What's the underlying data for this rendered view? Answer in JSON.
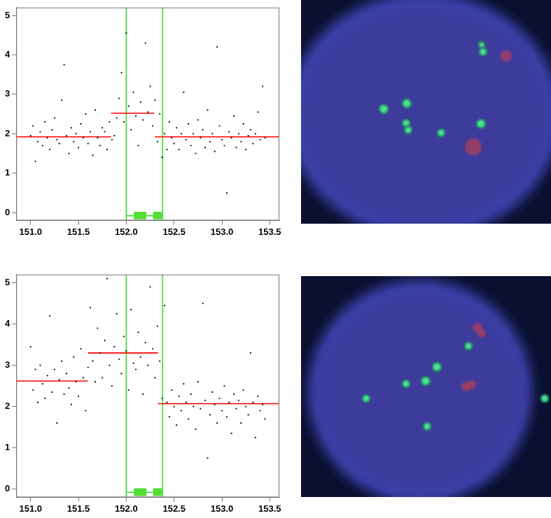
{
  "chart_data": [
    {
      "type": "scatter",
      "xlim": [
        150.85,
        153.6
      ],
      "xticks": [
        {
          "value": 151,
          "label": "151.0"
        },
        {
          "value": 151.5,
          "label": "151.5"
        },
        {
          "value": 152,
          "label": "152.0"
        },
        {
          "value": 152.5,
          "label": "152.5"
        },
        {
          "value": 153,
          "label": "153.0"
        },
        {
          "value": 153.5,
          "label": "153.5"
        }
      ],
      "ylim": [
        -0.2,
        5.2
      ],
      "yticks": [
        0,
        1,
        2,
        3,
        4,
        5
      ],
      "grid": false,
      "series": [
        {
          "type": "scatter",
          "color": "#000000",
          "marker": "dot",
          "x": [
            151.0,
            151.025,
            151.05,
            151.075,
            151.1,
            151.125,
            151.15,
            151.175,
            151.2,
            151.225,
            151.25,
            151.275,
            151.3,
            151.325,
            151.35,
            151.375,
            151.4,
            151.425,
            151.45,
            151.475,
            151.5,
            151.525,
            151.55,
            151.575,
            151.6,
            151.625,
            151.65,
            151.675,
            151.7,
            151.725,
            151.75,
            151.775,
            151.8,
            151.825,
            151.85,
            151.875,
            151.9,
            151.925,
            151.95,
            151.975,
            152.0,
            152.025,
            152.05,
            152.075,
            152.1,
            152.125,
            152.15,
            152.175,
            152.2,
            152.225,
            152.25,
            152.275,
            152.3,
            152.325,
            152.35,
            152.375,
            152.4,
            152.425,
            152.45,
            152.475,
            152.5,
            152.525,
            152.55,
            152.575,
            152.6,
            152.625,
            152.65,
            152.675,
            152.7,
            152.725,
            152.75,
            152.775,
            152.8,
            152.825,
            152.85,
            152.875,
            152.9,
            152.925,
            152.95,
            152.975,
            153.0,
            153.025,
            153.05,
            153.075,
            153.1,
            153.125,
            153.15,
            153.175,
            153.2,
            153.225,
            153.25,
            153.275,
            153.3,
            153.325,
            153.35,
            153.375,
            153.4,
            153.425,
            153.45
          ],
          "values": [
            1.95,
            2.2,
            1.3,
            1.8,
            2.05,
            1.7,
            2.3,
            1.9,
            1.6,
            2.1,
            2.4,
            1.85,
            1.75,
            2.85,
            3.75,
            1.95,
            1.5,
            2.15,
            1.8,
            2.0,
            1.65,
            2.25,
            1.9,
            2.5,
            1.75,
            2.05,
            1.45,
            2.6,
            1.9,
            1.7,
            2.15,
            2.05,
            1.6,
            2.3,
            1.85,
            1.95,
            2.4,
            2.9,
            3.55,
            2.3,
            4.55,
            2.7,
            2.1,
            3.05,
            2.45,
            1.7,
            2.8,
            2.35,
            4.3,
            2.55,
            3.2,
            2.2,
            2.85,
            1.8,
            2.5,
            1.4,
            2.0,
            1.6,
            2.3,
            1.9,
            1.75,
            2.15,
            1.6,
            2.0,
            3.05,
            1.85,
            2.25,
            1.7,
            2.0,
            1.5,
            2.35,
            1.9,
            2.1,
            1.65,
            2.6,
            1.8,
            2.0,
            1.55,
            4.2,
            2.2,
            1.85,
            1.7,
            0.5,
            2.05,
            1.9,
            2.45,
            1.65,
            2.0,
            1.8,
            2.25,
            1.6,
            1.95,
            2.1,
            1.75,
            2.0,
            2.55,
            1.85,
            3.2,
            1.9
          ]
        },
        {
          "type": "line",
          "color": "#ff0000",
          "x": [
            150.85,
            151.84
          ],
          "values": [
            1.92,
            1.92
          ]
        },
        {
          "type": "line",
          "color": "#ff0000",
          "x": [
            151.84,
            152.29
          ],
          "values": [
            2.52,
            2.52
          ]
        },
        {
          "type": "line",
          "color": "#ff0000",
          "x": [
            152.3,
            153.6
          ],
          "values": [
            1.92,
            1.92
          ]
        },
        {
          "type": "line",
          "color": "#33dd33",
          "x": [
            152.0,
            152.0
          ],
          "values": [
            -0.2,
            5.2
          ]
        },
        {
          "type": "line",
          "color": "#33dd33",
          "x": [
            152.38,
            152.38
          ],
          "values": [
            -0.2,
            5.2
          ]
        },
        {
          "type": "line",
          "color": "#33dd33",
          "x": [
            152.0,
            152.38
          ],
          "values": [
            -0.08,
            -0.08
          ]
        }
      ],
      "features": [
        {
          "color": "#55dd33",
          "x": [
            152.08,
            152.21
          ],
          "y": [
            -0.17,
            0.02
          ]
        },
        {
          "color": "#55dd33",
          "x": [
            152.28,
            152.37
          ],
          "y": [
            -0.17,
            0.02
          ]
        }
      ]
    },
    {
      "type": "scatter",
      "xlim": [
        150.85,
        153.6
      ],
      "xticks": [
        {
          "value": 151,
          "label": "151.0"
        },
        {
          "value": 151.5,
          "label": "151.5"
        },
        {
          "value": 152,
          "label": "152.0"
        },
        {
          "value": 152.5,
          "label": "152.5"
        },
        {
          "value": 153,
          "label": "153.0"
        },
        {
          "value": 153.5,
          "label": "153.5"
        }
      ],
      "ylim": [
        -0.2,
        5.2
      ],
      "yticks": [
        0,
        1,
        2,
        3,
        4,
        5
      ],
      "grid": false,
      "series": [
        {
          "type": "scatter",
          "color": "#000000",
          "marker": "dot",
          "x": [
            151.0,
            151.025,
            151.05,
            151.075,
            151.1,
            151.125,
            151.15,
            151.175,
            151.2,
            151.225,
            151.25,
            151.275,
            151.3,
            151.325,
            151.35,
            151.375,
            151.4,
            151.425,
            151.45,
            151.475,
            151.5,
            151.525,
            151.55,
            151.575,
            151.6,
            151.625,
            151.65,
            151.675,
            151.7,
            151.725,
            151.75,
            151.775,
            151.8,
            151.825,
            151.85,
            151.875,
            151.9,
            151.925,
            151.95,
            151.975,
            152.0,
            152.025,
            152.05,
            152.075,
            152.1,
            152.125,
            152.15,
            152.175,
            152.2,
            152.225,
            152.25,
            152.275,
            152.3,
            152.325,
            152.35,
            152.375,
            152.4,
            152.425,
            152.45,
            152.475,
            152.5,
            152.525,
            152.55,
            152.575,
            152.6,
            152.625,
            152.65,
            152.675,
            152.7,
            152.725,
            152.75,
            152.775,
            152.8,
            152.825,
            152.85,
            152.875,
            152.9,
            152.925,
            152.95,
            152.975,
            153.0,
            153.025,
            153.05,
            153.075,
            153.1,
            153.125,
            153.15,
            153.175,
            153.2,
            153.225,
            153.25,
            153.275,
            153.3,
            153.325,
            153.35,
            153.375,
            153.4,
            153.425,
            153.45
          ],
          "values": [
            3.45,
            2.4,
            2.9,
            2.1,
            3.0,
            2.55,
            2.2,
            2.75,
            4.2,
            2.35,
            2.9,
            1.6,
            2.65,
            3.1,
            2.3,
            2.8,
            2.45,
            2.05,
            3.2,
            2.6,
            2.25,
            3.4,
            2.7,
            1.9,
            2.95,
            4.4,
            3.1,
            2.6,
            3.9,
            3.3,
            2.7,
            3.6,
            5.1,
            3.0,
            2.5,
            3.45,
            4.25,
            3.15,
            2.8,
            3.7,
            3.35,
            2.4,
            4.35,
            3.05,
            2.9,
            3.8,
            3.2,
            2.3,
            3.55,
            3.0,
            4.9,
            3.4,
            2.7,
            3.95,
            3.1,
            2.2,
            4.45,
            2.1,
            1.75,
            2.4,
            2.0,
            1.55,
            2.25,
            1.9,
            2.55,
            2.1,
            1.7,
            2.3,
            2.0,
            1.45,
            2.6,
            1.95,
            4.5,
            2.15,
            0.75,
            1.8,
            2.35,
            2.05,
            1.6,
            2.2,
            1.9,
            2.5,
            1.75,
            2.1,
            1.35,
            2.3,
            1.95,
            2.15,
            1.6,
            2.4,
            2.0,
            1.8,
            3.3,
            2.1,
            1.25,
            2.25,
            1.9,
            2.05,
            1.7
          ]
        },
        {
          "type": "line",
          "color": "#ff0000",
          "x": [
            150.85,
            151.6
          ],
          "values": [
            2.62,
            2.62
          ]
        },
        {
          "type": "line",
          "color": "#ff0000",
          "x": [
            151.6,
            152.33
          ],
          "values": [
            3.3,
            3.3
          ]
        },
        {
          "type": "line",
          "color": "#ff0000",
          "x": [
            152.33,
            153.6
          ],
          "values": [
            2.07,
            2.07
          ]
        },
        {
          "type": "line",
          "color": "#33dd33",
          "x": [
            152.0,
            152.0
          ],
          "values": [
            -0.2,
            5.2
          ]
        },
        {
          "type": "line",
          "color": "#33dd33",
          "x": [
            152.38,
            152.38
          ],
          "values": [
            -0.2,
            5.2
          ]
        },
        {
          "type": "line",
          "color": "#33dd33",
          "x": [
            152.0,
            152.38
          ],
          "values": [
            -0.08,
            -0.08
          ]
        }
      ],
      "features": [
        {
          "color": "#55dd33",
          "x": [
            152.08,
            152.21
          ],
          "y": [
            -0.17,
            0.02
          ]
        },
        {
          "color": "#55dd33",
          "x": [
            152.28,
            152.37
          ],
          "y": [
            -0.17,
            0.02
          ]
        }
      ]
    }
  ]
}
